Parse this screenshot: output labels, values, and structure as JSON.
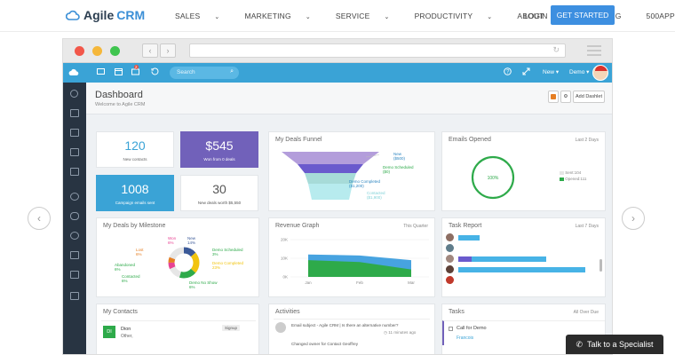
{
  "site_nav": {
    "logo_brand": "Agile",
    "logo_product": "CRM",
    "links": [
      {
        "label": "SALES",
        "has_caret": true
      },
      {
        "label": "MARKETING",
        "has_caret": true
      },
      {
        "label": "SERVICE",
        "has_caret": true
      },
      {
        "label": "PRODUCTIVITY",
        "has_caret": true
      },
      {
        "label": "ABOUT",
        "has_caret": true
      },
      {
        "label": "PRICING",
        "has_caret": false
      },
      {
        "label": "500APPS",
        "has_caret": true
      }
    ],
    "login": "LOGIN",
    "get_started": "GET STARTED"
  },
  "carousel": {
    "prev_icon": "chevron-left-icon",
    "next_icon": "chevron-right-icon",
    "prev_glyph": "‹",
    "next_glyph": "›"
  },
  "browser": {
    "back_glyph": "‹",
    "forward_glyph": "›",
    "reload_glyph": "↻"
  },
  "app_header": {
    "search_placeholder": "Search",
    "notification_count": "2",
    "new_label": "New",
    "user_label": "Demo"
  },
  "dashboard": {
    "title": "Dashboard",
    "subtitle": "Welcome to Agile CRM",
    "add_dashlet": "Add Dashlet"
  },
  "stats": {
    "new_contacts": {
      "value": "120",
      "label": "New contacts"
    },
    "won_deals": {
      "value": "$545",
      "label": "Won from 0 deals"
    },
    "campaign_emails": {
      "value": "1008",
      "label": "Campaign emails sent"
    },
    "new_deals": {
      "value": "30",
      "label": "New deals worth $5,550"
    }
  },
  "deals_funnel": {
    "title": "My Deals Funnel",
    "labels": [
      {
        "name": "New",
        "value": "($500)"
      },
      {
        "name": "Demo Scheduled",
        "value": "($0)"
      },
      {
        "name": "Demo Completed",
        "value": "($1,200)"
      },
      {
        "name": "Contacted",
        "value": "($1,900)"
      }
    ]
  },
  "emails_opened": {
    "title": "Emails Opened",
    "period": "Last 2 Days",
    "percent": "100%",
    "legend": [
      {
        "label": "Sent:104",
        "color": "#e6e6e6"
      },
      {
        "label": "Opened:111",
        "color": "#2eaa4a"
      }
    ]
  },
  "deals_by_milestone": {
    "title": "My Deals by Milestone",
    "labels": [
      {
        "name": "Won",
        "pct": "6%",
        "color": "#e84393"
      },
      {
        "name": "New",
        "pct": "14%",
        "color": "#3b5998"
      },
      {
        "name": "Lost",
        "pct": "6%",
        "color": "#e67e22"
      },
      {
        "name": "Demo Scheduled",
        "pct": "3%",
        "color": "#2eaa4a"
      },
      {
        "name": "Abandoned",
        "pct": "6%",
        "color": "#2eaa4a"
      },
      {
        "name": "Demo Completed",
        "pct": "23%",
        "color": "#f1c40f"
      },
      {
        "name": "Contacted",
        "pct": "6%",
        "color": "#2eaa4a"
      },
      {
        "name": "Demo No Show",
        "pct": "6%",
        "color": "#2eaa4a"
      }
    ]
  },
  "chart_data": {
    "type": "area",
    "title": "Revenue Graph",
    "period": "This Quarter",
    "categories": [
      "Jan",
      "Feb",
      "Mar"
    ],
    "yticks": [
      "20K",
      "10K",
      "0K"
    ],
    "ylim": [
      0,
      20000
    ],
    "series": [
      {
        "values": [
          12000,
          11500,
          9000
        ],
        "color": "#47a3e0"
      },
      {
        "values": [
          9000,
          8000,
          4000
        ],
        "color": "#2eaa4a"
      }
    ]
  },
  "task_report": {
    "title": "Task Report",
    "period": "Last 7 Days",
    "rows": [
      {
        "done": 0.16,
        "total": 0.16
      },
      {
        "done": 0,
        "total": 0
      },
      {
        "done": 0.1,
        "total": 0.66
      },
      {
        "done": 0,
        "total": 0.95
      },
      {
        "done": 0,
        "total": 0
      }
    ]
  },
  "my_contacts": {
    "title": "My Contacts",
    "items": [
      {
        "initials": "DI",
        "name": "Dion",
        "subtitle": "Other,",
        "tag": "Signup"
      }
    ]
  },
  "activities": {
    "title": "Activities",
    "items": [
      {
        "text": "Email subject - Agile CRM | Is there an alternative number?",
        "time": "11 minutes ago"
      },
      {
        "text": "Changed owner for Contact Geoffrey",
        "time": ""
      }
    ]
  },
  "tasks": {
    "title": "Tasks",
    "filter": "All Over Due",
    "items": [
      {
        "title": "Call for Demo",
        "assignee": "Francois"
      }
    ]
  },
  "talk_button": "Talk to a Specialist"
}
